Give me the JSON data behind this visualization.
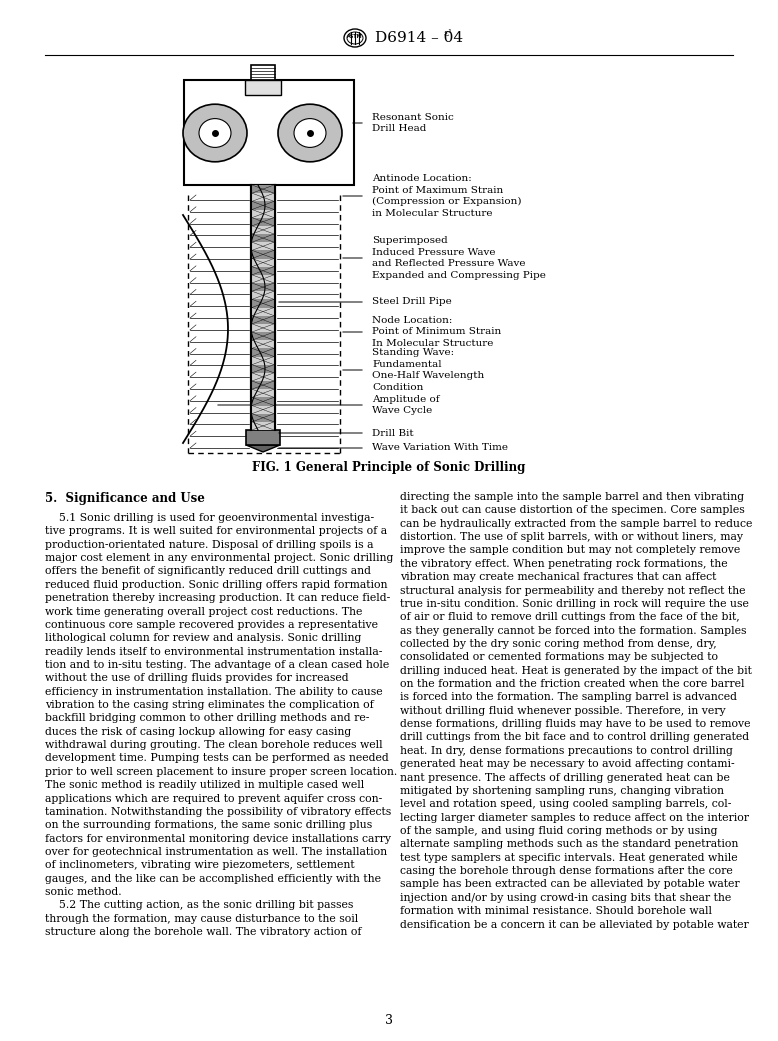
{
  "page_width": 7.78,
  "page_height": 10.41,
  "dpi": 100,
  "background": "#ffffff",
  "fig_caption": "FIG. 1 General Principle of Sonic Drilling",
  "section_title": "5.  Significance and Use",
  "page_number": "3"
}
